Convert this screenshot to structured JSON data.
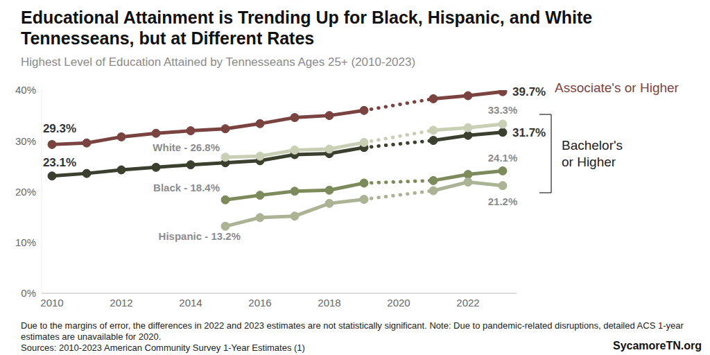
{
  "chart_data": {
    "type": "line",
    "title": "Educational Attainment is Trending Up for Black, Hispanic, and White Tennesseans, but at Different Rates",
    "subtitle": "Highest Level of Education Attained by Tennesseans Ages 25+ (2010-2023)",
    "x": [
      2010,
      2011,
      2012,
      2013,
      2014,
      2015,
      2016,
      2017,
      2018,
      2019,
      2020,
      2021,
      2022,
      2023
    ],
    "xlim": [
      2009.7,
      2023.4
    ],
    "xticks": [
      2010,
      2012,
      2014,
      2016,
      2018,
      2020,
      2022
    ],
    "ylim": [
      0,
      40
    ],
    "yticks": [
      {
        "value": 0,
        "label": "0%"
      },
      {
        "value": 10,
        "label": "10%"
      },
      {
        "value": 20,
        "label": "20%"
      },
      {
        "value": 30,
        "label": "30%"
      },
      {
        "value": 40,
        "label": "40%"
      }
    ],
    "grid": false,
    "data_labels": true,
    "marker": "circle",
    "line_style": "solid",
    "series": [
      {
        "name": "Associate's or Higher",
        "color": "#7a4340",
        "values": [
          29.3,
          29.6,
          30.8,
          31.5,
          32.0,
          32.4,
          33.4,
          34.6,
          35.0,
          36.0,
          null,
          38.3,
          38.9,
          39.7
        ],
        "value_labels": [
          "29.3%",
          null,
          null,
          null,
          null,
          null,
          null,
          null,
          null,
          null,
          null,
          null,
          null,
          "39.7%"
        ]
      },
      {
        "name": "Bachelor's or Higher",
        "color": "#3a3f2e",
        "values": [
          23.1,
          23.6,
          24.3,
          24.8,
          25.3,
          25.7,
          26.1,
          27.3,
          27.5,
          28.7,
          null,
          30.1,
          31.1,
          31.7
        ],
        "value_labels": [
          "23.1%",
          null,
          null,
          null,
          null,
          null,
          null,
          null,
          null,
          null,
          null,
          null,
          null,
          "31.7%"
        ]
      },
      {
        "name": "White",
        "color": "#c9cfb4",
        "values": [
          null,
          null,
          null,
          null,
          null,
          26.8,
          27.0,
          28.2,
          28.4,
          29.7,
          null,
          32.1,
          32.6,
          33.3
        ],
        "value_labels": [
          null,
          null,
          null,
          null,
          null,
          "White - 26.8%",
          null,
          null,
          null,
          null,
          null,
          null,
          null,
          "33.3%"
        ]
      },
      {
        "name": "Black",
        "color": "#7d8a5c",
        "values": [
          null,
          null,
          null,
          null,
          null,
          18.4,
          19.3,
          20.1,
          20.3,
          21.7,
          null,
          22.2,
          23.4,
          24.1
        ],
        "value_labels": [
          null,
          null,
          null,
          null,
          null,
          "Black - 18.4%",
          null,
          null,
          null,
          null,
          null,
          null,
          null,
          "24.1%"
        ]
      },
      {
        "name": "Hispanic",
        "color": "#abb394",
        "values": [
          null,
          null,
          null,
          null,
          null,
          13.2,
          14.9,
          15.2,
          17.7,
          18.5,
          null,
          20.2,
          21.9,
          21.2
        ],
        "value_labels": [
          null,
          null,
          null,
          null,
          null,
          "Hispanic - 13.2%",
          null,
          null,
          null,
          null,
          null,
          null,
          null,
          "21.2%"
        ]
      }
    ],
    "footnotes": [
      "Due to the margins of error, the differences in 2022 and 2023 estimates are not statistically significant. Note: Due to pandemic-related disruptions, detailed ACS 1-year estimates are unavailable for 2020.",
      "Sources: 2010-2023 American Community Survey 1-Year Estimates (1)"
    ],
    "credit": "SycamoreTN.org"
  }
}
